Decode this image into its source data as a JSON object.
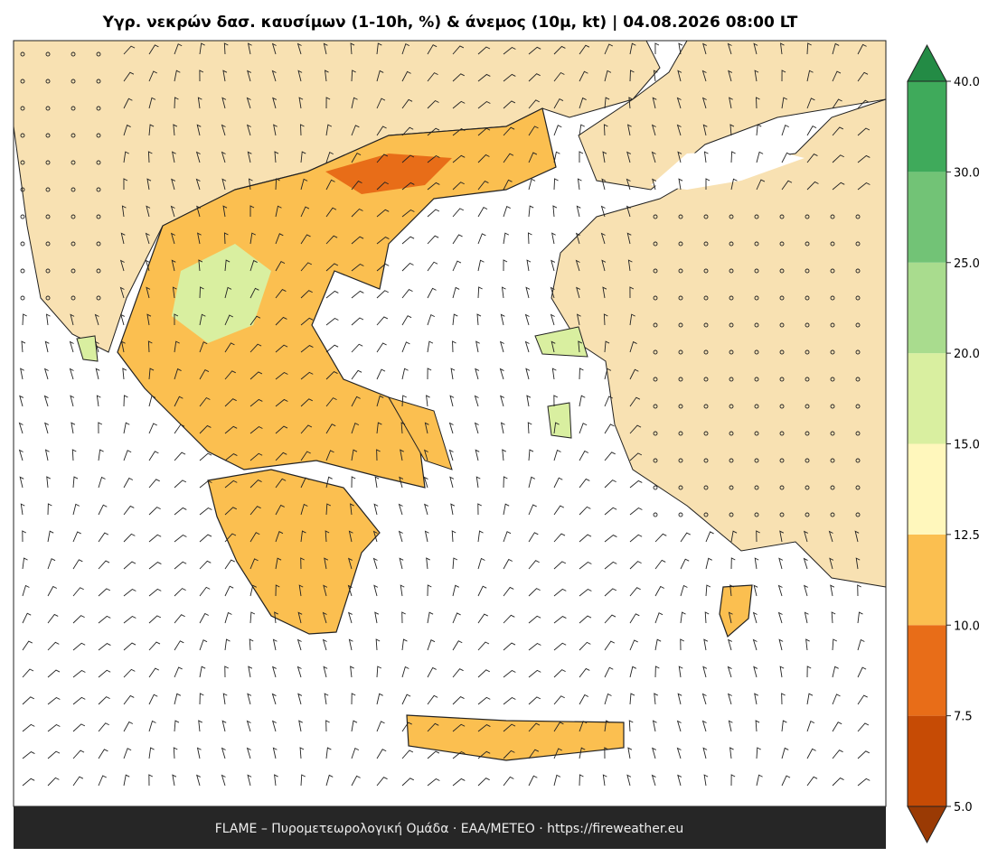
{
  "header": {
    "title": "Υγρ. νεκρών δασ. καυσίμων (1-10h, %) & άνεμος (10μ, kt)  |  04.08.2026 08:00 LT"
  },
  "footer": {
    "text": "FLAME – Πυρομετεωρολογική Ομάδα · ΕΑΑ/METEO · https://fireweather.eu"
  },
  "colorbar": {
    "ticks": [
      {
        "value": 5,
        "label": "5.0"
      },
      {
        "value": 7.5,
        "label": "7.5"
      },
      {
        "value": 10,
        "label": "10.0"
      },
      {
        "value": 12.5,
        "label": "12.5"
      },
      {
        "value": 15,
        "label": "15.0"
      },
      {
        "value": 20,
        "label": "20.0"
      },
      {
        "value": 25,
        "label": "25.0"
      },
      {
        "value": 30,
        "label": "30.0"
      },
      {
        "value": 40,
        "label": "40.0"
      }
    ],
    "colors": [
      "#c64b05",
      "#e86d18",
      "#fbbf50",
      "#fff7bc",
      "#d9efa0",
      "#a9dc8e",
      "#72c376",
      "#3faa5b"
    ],
    "under_color": "#9a3a04",
    "over_color": "#238b45"
  }
}
